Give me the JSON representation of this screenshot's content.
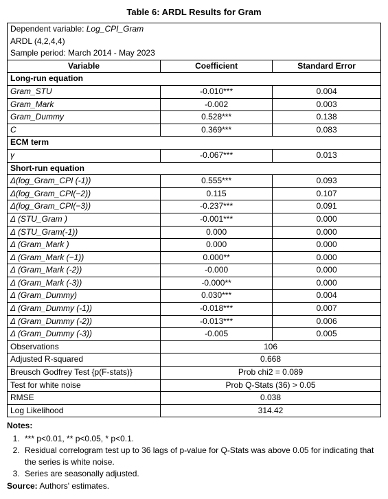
{
  "title": "Table 6: ARDL Results for Gram",
  "meta": {
    "dependent": "Dependent variable: ",
    "dependent_val": "Log_CPI_Gram",
    "spec": "ARDL (4,2,4,4)",
    "period": "Sample period: March 2014 - May 2023"
  },
  "headers": {
    "variable": "Variable",
    "coef": "Coefficient",
    "se": "Standard Error"
  },
  "sections": {
    "longrun": "Long-run equation",
    "ecm": "ECM term",
    "shortrun": "Short-run equation"
  },
  "longrun": [
    {
      "v": "Gram_STU",
      "c": "-0.010***",
      "s": "0.004"
    },
    {
      "v": "Gram_Mark",
      "c": "-0.002",
      "s": "0.003"
    },
    {
      "v": "Gram_Dummy",
      "c": "0.528***",
      "s": "0.138"
    },
    {
      "v": "C",
      "c": "0.369***",
      "s": "0.083"
    }
  ],
  "ecm": {
    "v": "γ",
    "c": "-0.067***",
    "s": "0.013"
  },
  "shortrun": [
    {
      "v": "Δ(log_Gram_CPI (-1))",
      "c": "0.555***",
      "s": "0.093"
    },
    {
      "v": "Δ(log_Gram_CPI(−2))",
      "c": "0.115",
      "s": "0.107"
    },
    {
      "v": "Δ(log_Gram_CPI(−3))",
      "c": "-0.237***",
      "s": "0.091"
    },
    {
      "v": "Δ (STU_Gram )",
      "c": "-0.001***",
      "s": "0.000"
    },
    {
      "v": "Δ (STU_Gram(-1))",
      "c": "0.000",
      "s": "0.000"
    },
    {
      "v": "Δ (Gram_Mark )",
      "c": "0.000",
      "s": "0.000"
    },
    {
      "v": "Δ (Gram_Mark  (−1))",
      "c": "0.000**",
      "s": "0.000"
    },
    {
      "v": "Δ (Gram_Mark (-2))",
      "c": "-0.000",
      "s": "0.000"
    },
    {
      "v": "Δ (Gram_Mark (-3))",
      "c": "-0.000**",
      "s": "0.000"
    },
    {
      "v": "Δ (Gram_Dummy)",
      "c": "0.030***",
      "s": "0.004"
    },
    {
      "v": "Δ (Gram_Dummy (-1))",
      "c": "-0.018***",
      "s": "0.007"
    },
    {
      "v": "Δ (Gram_Dummy (-2))",
      "c": "-0.013***",
      "s": "0.006"
    },
    {
      "v": "Δ (Gram_Dummy (-3))",
      "c": "-0.005",
      "s": "0.005"
    }
  ],
  "stats": [
    {
      "l": "Observations",
      "v": "106"
    },
    {
      "l": "Adjusted R-squared",
      "v": "0.668"
    },
    {
      "l": "Breusch Godfrey Test {p(F-stats)}",
      "v": "Prob chi2 = 0.089"
    },
    {
      "l": "Test for white noise",
      "v": "Prob Q-Stats (36) > 0.05"
    },
    {
      "l": "RMSE",
      "v": "0.038"
    },
    {
      "l": "Log Likelihood",
      "v": "314.42"
    }
  ],
  "notes": {
    "heading": "Notes:",
    "items": [
      "*** p<0.01, ** p<0.05, * p<0.1.",
      "Residual correlogram test up to 36 lags of p-value for Q-Stats was above 0.05 for indicating that the series is white noise.",
      "Series are seasonally adjusted."
    ],
    "source_label": "Source:",
    "source_text": " Authors' estimates."
  },
  "layout": {
    "col_widths": [
      "41%",
      "30%",
      "29%"
    ]
  }
}
